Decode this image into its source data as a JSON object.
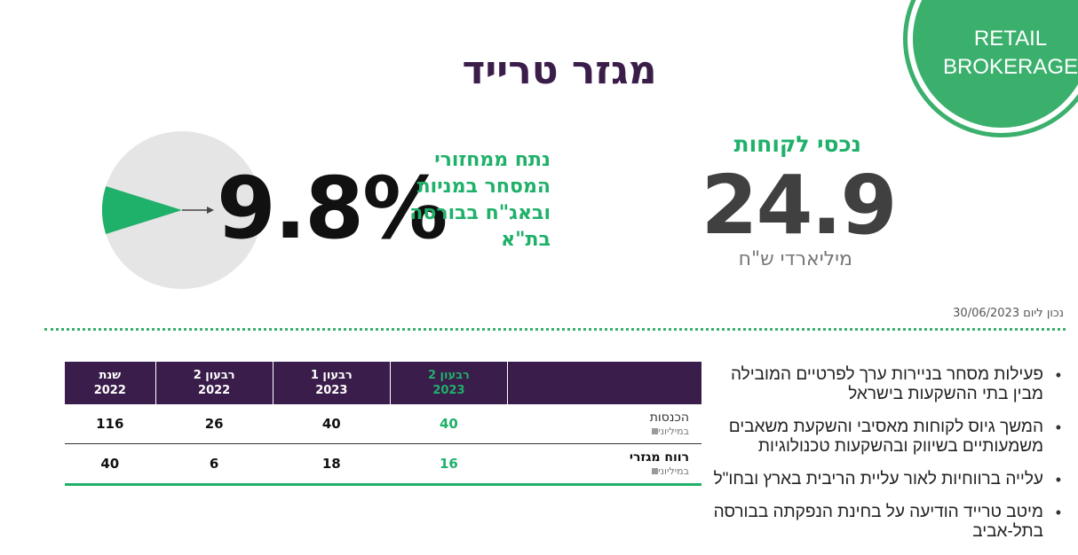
{
  "badge": {
    "line1": "RETAIL",
    "line2": "BROKERAGE"
  },
  "title": "מגזר טרייד",
  "market_share": {
    "value": "9.8%",
    "fraction": 0.098,
    "description": "נתח ממחזורי המסחר במניות ובאג\"ח בבורסה בת\"א"
  },
  "client_assets": {
    "label": "נכסי לקוחות",
    "value": "24.9",
    "unit": "מיליארדי ש\"ח"
  },
  "as_of": "נכון ליום 30/06/2023",
  "table": {
    "headers": [
      {
        "line1": "רבעון 2",
        "line2": "2023"
      },
      {
        "line1": "רבעון 1",
        "line2": "2023"
      },
      {
        "line1": "רבעון 2",
        "line2": "2022"
      },
      {
        "line1": "שנת",
        "line2": "2022"
      }
    ],
    "rows": [
      {
        "label": "הכנסות",
        "sub": "במיליוני",
        "values": [
          "40",
          "40",
          "26",
          "116"
        ]
      },
      {
        "label": "רווח מגזרי",
        "sub": "במיליוני",
        "values": [
          "16",
          "18",
          "6",
          "40"
        ]
      }
    ]
  },
  "bullets": [
    "פעילות מסחר בניירות ערך לפרטיים המובילה מבין בתי ההשקעות בישראל",
    "המשך גיוס לקוחות מאסיבי והשקעת משאבים משמעותיים בשיווק ובהשקעות טכנולוגיות",
    "עלייה ברווחיות לאור עליית הריבית בארץ ובחו\"ל",
    "מיטב טרייד הודיעה על בחינת הנפקתה בבורסה בתל-אביב"
  ],
  "colors": {
    "green": "#1fb06a",
    "purple": "#3b1d4a",
    "pie_bg": "#e5e5e5"
  }
}
